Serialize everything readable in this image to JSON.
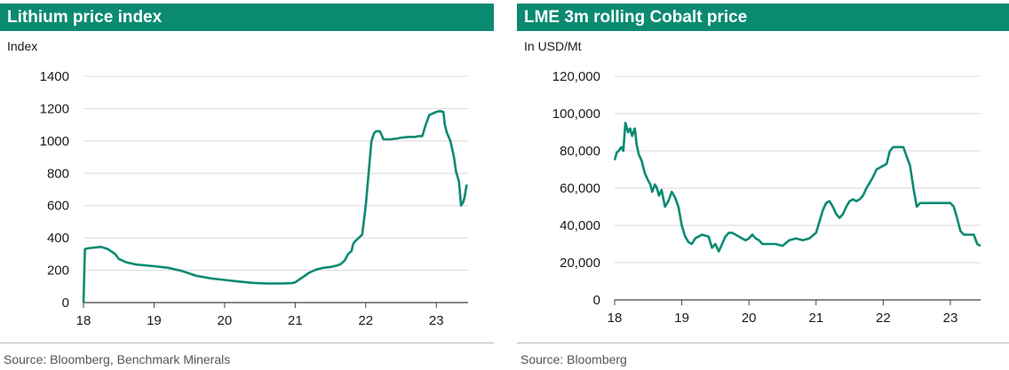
{
  "chart_data": [
    {
      "type": "line",
      "title": "Lithium price index",
      "ylabel": "Index",
      "source": "Source: Bloomberg, Benchmark Minerals",
      "ylim": [
        0,
        1400
      ],
      "yticks": [
        0,
        200,
        400,
        600,
        800,
        1000,
        1200,
        1400
      ],
      "ytick_labels": [
        "0",
        "200",
        "400",
        "600",
        "800",
        "1000",
        "1200",
        "1400"
      ],
      "xlim": [
        18,
        23.45
      ],
      "xticks": [
        18,
        19,
        20,
        21,
        22,
        23
      ],
      "xtick_labels": [
        "18",
        "19",
        "20",
        "21",
        "22",
        "23"
      ],
      "grid": true,
      "color": "#0b8a72",
      "series": [
        {
          "x": [
            18.0,
            18.02,
            18.05,
            18.15,
            18.25,
            18.35,
            18.45,
            18.5,
            18.6,
            18.75,
            19.0,
            19.2,
            19.4,
            19.6,
            19.8,
            20.0,
            20.2,
            20.4,
            20.6,
            20.8,
            20.95,
            21.0,
            21.05,
            21.1,
            21.15,
            21.2,
            21.25,
            21.3,
            21.35,
            21.4,
            21.5,
            21.6,
            21.65,
            21.7,
            21.75,
            21.8,
            21.82,
            21.85,
            21.9,
            21.95,
            22.0,
            22.05,
            22.08,
            22.12,
            22.15,
            22.2,
            22.25,
            22.35,
            22.45,
            22.5,
            22.6,
            22.7,
            22.75,
            22.8,
            22.85,
            22.9,
            22.95,
            23.0,
            23.05,
            23.1,
            23.12,
            23.15,
            23.2,
            23.25,
            23.28,
            23.32,
            23.35,
            23.38,
            23.4,
            23.43
          ],
          "y": [
            0,
            330,
            335,
            340,
            345,
            330,
            300,
            270,
            250,
            235,
            225,
            215,
            195,
            165,
            150,
            140,
            130,
            122,
            118,
            118,
            120,
            125,
            140,
            155,
            170,
            185,
            195,
            205,
            210,
            215,
            220,
            230,
            240,
            260,
            300,
            320,
            360,
            380,
            400,
            420,
            600,
            850,
            1000,
            1050,
            1060,
            1060,
            1010,
            1010,
            1015,
            1020,
            1025,
            1025,
            1030,
            1030,
            1100,
            1160,
            1170,
            1180,
            1185,
            1180,
            1100,
            1050,
            1000,
            900,
            810,
            750,
            600,
            620,
            650,
            730
          ]
        }
      ]
    },
    {
      "type": "line",
      "title": "LME 3m rolling Cobalt price",
      "ylabel": "In USD/Mt",
      "source": "Source: Bloomberg",
      "ylim": [
        0,
        120000
      ],
      "yticks": [
        0,
        20000,
        40000,
        60000,
        80000,
        100000,
        120000
      ],
      "ytick_labels": [
        "0",
        "20,000",
        "40,000",
        "60,000",
        "80,000",
        "100,000",
        "120,000"
      ],
      "xlim": [
        18,
        23.45
      ],
      "xticks": [
        18,
        19,
        20,
        21,
        22,
        23
      ],
      "xtick_labels": [
        "18",
        "19",
        "20",
        "21",
        "22",
        "23"
      ],
      "grid": true,
      "color": "#0b8a72",
      "series": [
        {
          "x": [
            18.0,
            18.03,
            18.06,
            18.1,
            18.13,
            18.16,
            18.2,
            18.23,
            18.26,
            18.3,
            18.33,
            18.36,
            18.4,
            18.45,
            18.5,
            18.53,
            18.56,
            18.6,
            18.63,
            18.66,
            18.7,
            18.75,
            18.8,
            18.85,
            18.9,
            18.95,
            19.0,
            19.05,
            19.1,
            19.15,
            19.2,
            19.3,
            19.4,
            19.45,
            19.5,
            19.55,
            19.6,
            19.65,
            19.7,
            19.75,
            19.8,
            19.85,
            19.9,
            19.95,
            20.0,
            20.05,
            20.1,
            20.15,
            20.2,
            20.3,
            20.4,
            20.5,
            20.6,
            20.7,
            20.8,
            20.9,
            21.0,
            21.05,
            21.1,
            21.15,
            21.2,
            21.25,
            21.3,
            21.35,
            21.4,
            21.45,
            21.5,
            21.55,
            21.6,
            21.65,
            21.7,
            21.75,
            21.8,
            21.85,
            21.9,
            21.95,
            22.0,
            22.05,
            22.1,
            22.15,
            22.2,
            22.3,
            22.35,
            22.4,
            22.45,
            22.5,
            22.55,
            22.6,
            22.65,
            22.7,
            22.8,
            22.9,
            23.0,
            23.05,
            23.1,
            23.15,
            23.2,
            23.25,
            23.3,
            23.35,
            23.4,
            23.45
          ],
          "y": [
            75000,
            79000,
            80000,
            82000,
            80000,
            95000,
            90000,
            92000,
            88000,
            92000,
            83000,
            78000,
            75000,
            68000,
            64000,
            62000,
            58000,
            62000,
            60000,
            56000,
            59000,
            50000,
            53000,
            58000,
            55000,
            50000,
            40000,
            34000,
            31000,
            30000,
            33000,
            35000,
            34000,
            28000,
            30000,
            26000,
            30000,
            34000,
            36000,
            36000,
            35000,
            34000,
            33000,
            32000,
            33000,
            35000,
            33000,
            32000,
            30000,
            30000,
            30000,
            29000,
            32000,
            33000,
            32000,
            33000,
            36000,
            42000,
            48000,
            52000,
            53000,
            50000,
            46000,
            44000,
            46000,
            50000,
            53000,
            54000,
            53000,
            54000,
            56000,
            60000,
            63000,
            66000,
            70000,
            71000,
            72000,
            73000,
            80000,
            82000,
            82000,
            82000,
            77000,
            72000,
            60000,
            50000,
            52000,
            52000,
            52000,
            52000,
            52000,
            52000,
            52000,
            50000,
            44000,
            37000,
            35000,
            35000,
            35000,
            35000,
            30000,
            29000
          ]
        }
      ]
    }
  ]
}
